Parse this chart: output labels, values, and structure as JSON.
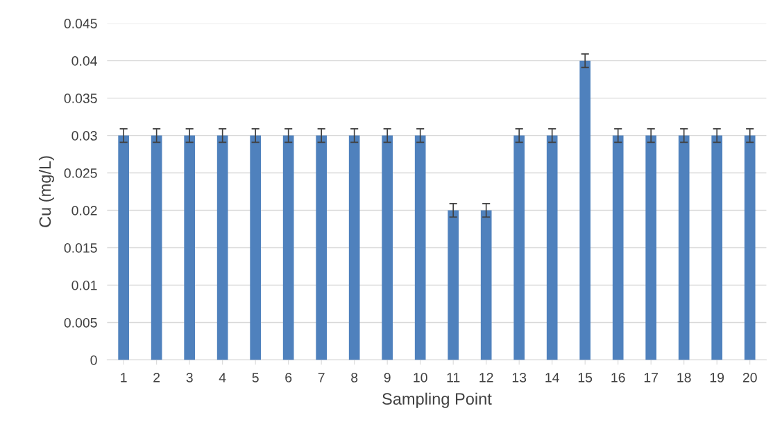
{
  "chart_data": {
    "type": "bar",
    "xlabel": "Sampling Point",
    "ylabel": "Cu (mg/L)",
    "categories": [
      "1",
      "2",
      "3",
      "4",
      "5",
      "6",
      "7",
      "8",
      "9",
      "10",
      "11",
      "12",
      "13",
      "14",
      "15",
      "16",
      "17",
      "18",
      "19",
      "20"
    ],
    "values": [
      0.03,
      0.03,
      0.03,
      0.03,
      0.03,
      0.03,
      0.03,
      0.03,
      0.03,
      0.03,
      0.02,
      0.02,
      0.03,
      0.03,
      0.04,
      0.03,
      0.03,
      0.03,
      0.03,
      0.03
    ],
    "errors": [
      0.0009,
      0.0009,
      0.0009,
      0.0009,
      0.0009,
      0.0009,
      0.0009,
      0.0009,
      0.0009,
      0.0009,
      0.0009,
      0.0009,
      0.0009,
      0.0009,
      0.0009,
      0.0009,
      0.0009,
      0.0009,
      0.0009,
      0.0009
    ],
    "color": "#4f81bd",
    "ylim": [
      0,
      0.045
    ],
    "yticks": [
      0,
      0.005,
      0.01,
      0.015,
      0.02,
      0.025,
      0.03,
      0.035,
      0.04,
      0.045
    ],
    "grid": "y",
    "legend": false
  }
}
